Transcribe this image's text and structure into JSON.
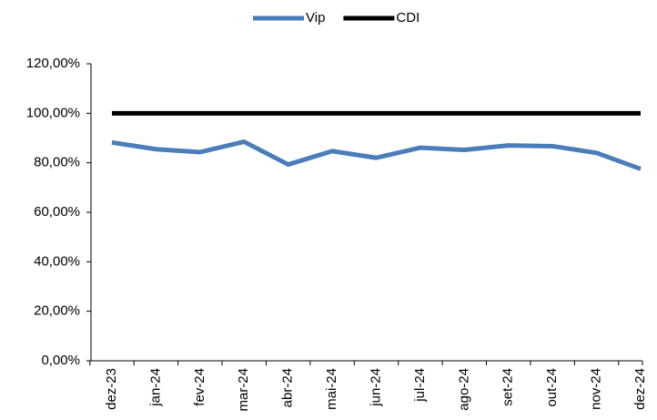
{
  "chart_data": {
    "type": "line",
    "categories": [
      "dez-23",
      "jan-24",
      "fev-24",
      "mar-24",
      "abr-24",
      "mai-24",
      "jun-24",
      "jul-24",
      "ago-24",
      "set-24",
      "out-24",
      "nov-24",
      "dez-24"
    ],
    "series": [
      {
        "name": "Vip",
        "color": "#4a7ebb",
        "values": [
          88.2,
          85.5,
          84.3,
          88.5,
          79.3,
          84.7,
          82.0,
          86.1,
          85.2,
          87.0,
          86.7,
          84.0,
          77.5
        ]
      },
      {
        "name": "CDI",
        "color": "#000000",
        "values": [
          100,
          100,
          100,
          100,
          100,
          100,
          100,
          100,
          100,
          100,
          100,
          100,
          100
        ]
      }
    ],
    "ylim": [
      0,
      120
    ],
    "yticks": [
      {
        "value": 0,
        "label": "0,00%"
      },
      {
        "value": 20,
        "label": "20,00%"
      },
      {
        "value": 40,
        "label": "40,00%"
      },
      {
        "value": 60,
        "label": "60,00%"
      },
      {
        "value": 80,
        "label": "80,00%"
      },
      {
        "value": 100,
        "label": "100,00%"
      },
      {
        "value": 120,
        "label": "120,00%"
      }
    ],
    "legend": "top"
  }
}
